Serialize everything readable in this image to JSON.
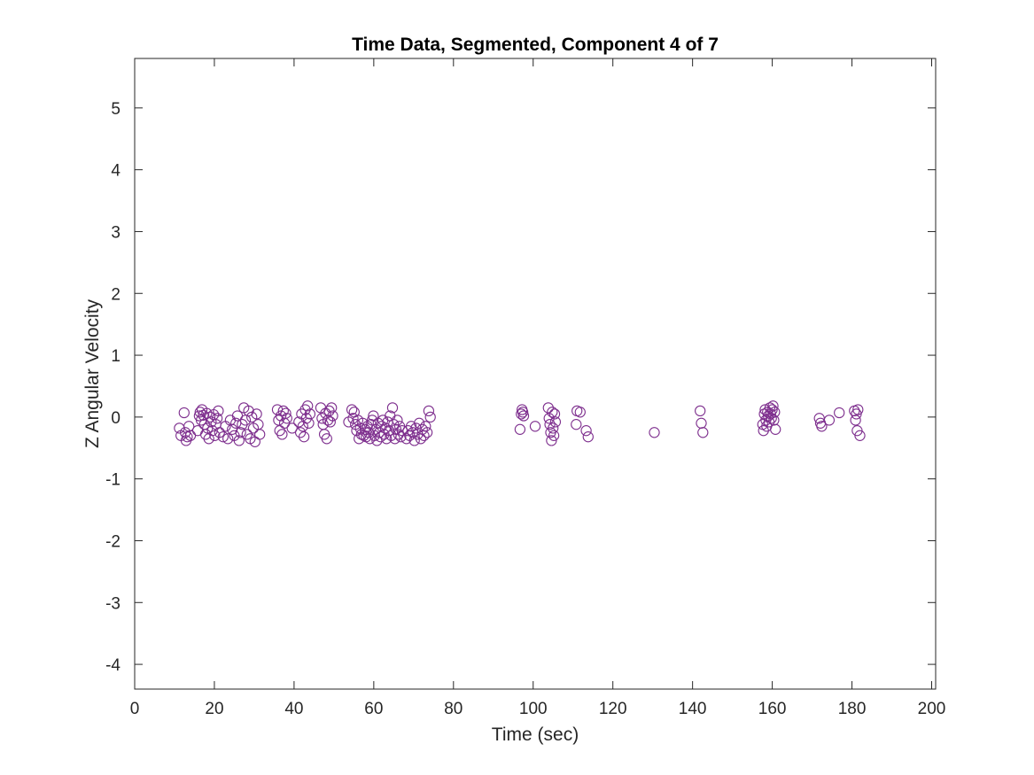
{
  "chart_data": {
    "type": "scatter",
    "title": "Time Data, Segmented, Component 4 of 7",
    "xlabel": "Time (sec)",
    "ylabel": "Z Angular Velocity",
    "xlim": [
      0,
      201
    ],
    "ylim": [
      -4.4,
      5.8
    ],
    "xticks": [
      0,
      20,
      40,
      60,
      80,
      100,
      120,
      140,
      160,
      180,
      200
    ],
    "yticks": [
      -4,
      -3,
      -2,
      -1,
      0,
      1,
      2,
      3,
      4,
      5
    ],
    "grid": false,
    "legend": "none",
    "marker": "open-circle",
    "marker_color": "#7E2F8E",
    "points": [
      [
        11.2,
        -0.18
      ],
      [
        11.6,
        -0.3
      ],
      [
        12.4,
        0.07
      ],
      [
        12.7,
        -0.25
      ],
      [
        12.9,
        -0.38
      ],
      [
        13.2,
        -0.32
      ],
      [
        13.6,
        -0.15
      ],
      [
        14.0,
        -0.3
      ],
      [
        15.8,
        -0.22
      ],
      [
        16.2,
        0.02
      ],
      [
        16.4,
        0.08
      ],
      [
        16.7,
        -0.05
      ],
      [
        16.9,
        0.12
      ],
      [
        17.2,
        0.03
      ],
      [
        17.5,
        -0.12
      ],
      [
        17.8,
        -0.28
      ],
      [
        18.1,
        0.06
      ],
      [
        18.3,
        -0.18
      ],
      [
        18.6,
        -0.35
      ],
      [
        18.9,
        0.0
      ],
      [
        19.2,
        -0.08
      ],
      [
        19.5,
        -0.22
      ],
      [
        19.8,
        0.04
      ],
      [
        20.1,
        -0.3
      ],
      [
        20.4,
        -0.12
      ],
      [
        20.7,
        -0.02
      ],
      [
        21.0,
        0.1
      ],
      [
        21.3,
        -0.25
      ],
      [
        22.2,
        -0.32
      ],
      [
        22.8,
        -0.15
      ],
      [
        23.4,
        -0.35
      ],
      [
        24.0,
        -0.05
      ],
      [
        24.5,
        -0.2
      ],
      [
        25.0,
        -0.3
      ],
      [
        25.4,
        -0.1
      ],
      [
        25.8,
        0.02
      ],
      [
        26.2,
        -0.38
      ],
      [
        26.6,
        -0.25
      ],
      [
        27.0,
        -0.12
      ],
      [
        27.4,
        0.15
      ],
      [
        27.8,
        -0.05
      ],
      [
        28.2,
        -0.28
      ],
      [
        28.6,
        0.1
      ],
      [
        29.0,
        -0.35
      ],
      [
        29.4,
        0.0
      ],
      [
        29.8,
        -0.18
      ],
      [
        30.2,
        -0.4
      ],
      [
        30.6,
        0.05
      ],
      [
        31.0,
        -0.12
      ],
      [
        31.4,
        -0.28
      ],
      [
        35.8,
        0.12
      ],
      [
        36.1,
        -0.05
      ],
      [
        36.4,
        -0.22
      ],
      [
        36.7,
        0.02
      ],
      [
        37.0,
        -0.28
      ],
      [
        37.3,
        0.1
      ],
      [
        37.6,
        -0.1
      ],
      [
        37.9,
        0.06
      ],
      [
        38.2,
        -0.02
      ],
      [
        39.5,
        -0.18
      ],
      [
        41.2,
        -0.08
      ],
      [
        41.6,
        -0.25
      ],
      [
        41.9,
        0.05
      ],
      [
        42.2,
        -0.15
      ],
      [
        42.5,
        -0.32
      ],
      [
        42.8,
        0.12
      ],
      [
        43.1,
        -0.02
      ],
      [
        43.4,
        0.18
      ],
      [
        43.7,
        -0.1
      ],
      [
        44.0,
        0.05
      ],
      [
        46.7,
        0.15
      ],
      [
        47.0,
        -0.02
      ],
      [
        47.3,
        -0.12
      ],
      [
        47.6,
        -0.28
      ],
      [
        47.9,
        0.06
      ],
      [
        48.2,
        -0.35
      ],
      [
        48.5,
        -0.05
      ],
      [
        48.8,
        0.1
      ],
      [
        49.1,
        -0.08
      ],
      [
        49.4,
        0.15
      ],
      [
        49.7,
        0.02
      ],
      [
        53.7,
        -0.08
      ],
      [
        54.5,
        0.12
      ],
      [
        54.8,
        -0.02
      ],
      [
        55.1,
        0.08
      ],
      [
        55.4,
        -0.12
      ],
      [
        55.7,
        -0.22
      ],
      [
        56.0,
        -0.05
      ],
      [
        56.3,
        -0.35
      ],
      [
        56.6,
        -0.18
      ],
      [
        56.9,
        -0.28
      ],
      [
        57.2,
        -0.1
      ],
      [
        57.5,
        -0.3
      ],
      [
        57.8,
        -0.2
      ],
      [
        58.1,
        -0.32
      ],
      [
        58.4,
        -0.15
      ],
      [
        58.7,
        -0.25
      ],
      [
        59.0,
        -0.35
      ],
      [
        59.3,
        -0.12
      ],
      [
        59.6,
        -0.05
      ],
      [
        59.9,
        0.02
      ],
      [
        60.2,
        -0.3
      ],
      [
        60.5,
        -0.2
      ],
      [
        60.8,
        -0.38
      ],
      [
        61.1,
        -0.1
      ],
      [
        61.4,
        -0.25
      ],
      [
        61.7,
        -0.32
      ],
      [
        62.0,
        -0.15
      ],
      [
        62.3,
        -0.05
      ],
      [
        62.6,
        -0.28
      ],
      [
        62.9,
        -0.18
      ],
      [
        63.2,
        -0.35
      ],
      [
        63.5,
        -0.08
      ],
      [
        63.8,
        -0.22
      ],
      [
        64.1,
        0.02
      ],
      [
        64.4,
        -0.3
      ],
      [
        64.7,
        0.15
      ],
      [
        65.0,
        -0.12
      ],
      [
        65.3,
        -0.35
      ],
      [
        65.6,
        -0.2
      ],
      [
        65.9,
        -0.05
      ],
      [
        66.2,
        -0.28
      ],
      [
        66.5,
        -0.15
      ],
      [
        66.8,
        -0.32
      ],
      [
        67.1,
        -0.22
      ],
      [
        68.2,
        -0.35
      ],
      [
        68.6,
        -0.22
      ],
      [
        69.0,
        -0.3
      ],
      [
        69.4,
        -0.15
      ],
      [
        69.8,
        -0.25
      ],
      [
        70.2,
        -0.38
      ],
      [
        70.6,
        -0.18
      ],
      [
        71.0,
        -0.28
      ],
      [
        71.4,
        -0.1
      ],
      [
        71.8,
        -0.35
      ],
      [
        72.2,
        -0.2
      ],
      [
        72.6,
        -0.3
      ],
      [
        73.0,
        -0.15
      ],
      [
        73.4,
        -0.25
      ],
      [
        73.8,
        0.1
      ],
      [
        74.2,
        0.0
      ],
      [
        96.7,
        -0.2
      ],
      [
        97.0,
        0.05
      ],
      [
        97.2,
        0.12
      ],
      [
        97.4,
        0.08
      ],
      [
        97.6,
        0.02
      ],
      [
        100.5,
        -0.15
      ],
      [
        103.8,
        0.15
      ],
      [
        104.0,
        -0.02
      ],
      [
        104.2,
        -0.12
      ],
      [
        104.4,
        -0.25
      ],
      [
        104.6,
        -0.38
      ],
      [
        104.8,
        0.08
      ],
      [
        105.0,
        -0.18
      ],
      [
        105.2,
        -0.3
      ],
      [
        105.4,
        0.05
      ],
      [
        105.6,
        -0.08
      ],
      [
        110.8,
        -0.12
      ],
      [
        111.0,
        0.1
      ],
      [
        111.8,
        0.08
      ],
      [
        113.3,
        -0.22
      ],
      [
        113.8,
        -0.32
      ],
      [
        130.4,
        -0.25
      ],
      [
        141.9,
        0.1
      ],
      [
        142.2,
        -0.1
      ],
      [
        142.6,
        -0.25
      ],
      [
        157.6,
        -0.12
      ],
      [
        157.8,
        -0.22
      ],
      [
        158.0,
        0.05
      ],
      [
        158.2,
        0.12
      ],
      [
        158.4,
        -0.05
      ],
      [
        158.6,
        -0.15
      ],
      [
        158.8,
        0.08
      ],
      [
        159.0,
        0.02
      ],
      [
        159.2,
        -0.08
      ],
      [
        159.4,
        0.15
      ],
      [
        159.6,
        0.05
      ],
      [
        159.8,
        -0.02
      ],
      [
        160.0,
        0.12
      ],
      [
        160.2,
        0.18
      ],
      [
        160.4,
        -0.05
      ],
      [
        160.6,
        0.08
      ],
      [
        160.8,
        -0.2
      ],
      [
        171.8,
        -0.02
      ],
      [
        172.1,
        -0.1
      ],
      [
        172.4,
        -0.15
      ],
      [
        174.3,
        -0.05
      ],
      [
        176.8,
        0.07
      ],
      [
        180.6,
        0.1
      ],
      [
        180.9,
        -0.05
      ],
      [
        181.1,
        0.05
      ],
      [
        181.3,
        -0.22
      ],
      [
        181.5,
        0.12
      ],
      [
        182.0,
        -0.3
      ]
    ]
  }
}
